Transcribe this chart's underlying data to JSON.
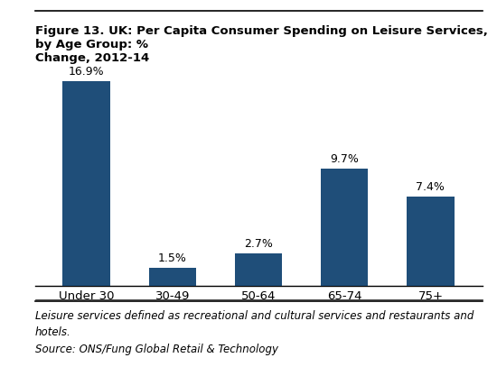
{
  "categories": [
    "Under 30",
    "30-49",
    "50-64",
    "65-74",
    "75+"
  ],
  "values": [
    16.9,
    1.5,
    2.7,
    9.7,
    7.4
  ],
  "labels": [
    "16.9%",
    "1.5%",
    "2.7%",
    "9.7%",
    "7.4%"
  ],
  "bar_color": "#1F4E79",
  "title": "Figure 13. UK: Per Capita Consumer Spending on Leisure Services, by Age Group: %\nChange, 2012-14",
  "title_fontsize": 9.5,
  "footnote_line1": "Leisure services defined as recreational and cultural services and restaurants and",
  "footnote_line2": "hotels.",
  "footnote_line3": "Source: ONS/Fung Global Retail & Technology",
  "footnote_fontsize": 8.5,
  "ylim": [
    0,
    20
  ],
  "background_color": "#ffffff",
  "label_fontsize": 9
}
